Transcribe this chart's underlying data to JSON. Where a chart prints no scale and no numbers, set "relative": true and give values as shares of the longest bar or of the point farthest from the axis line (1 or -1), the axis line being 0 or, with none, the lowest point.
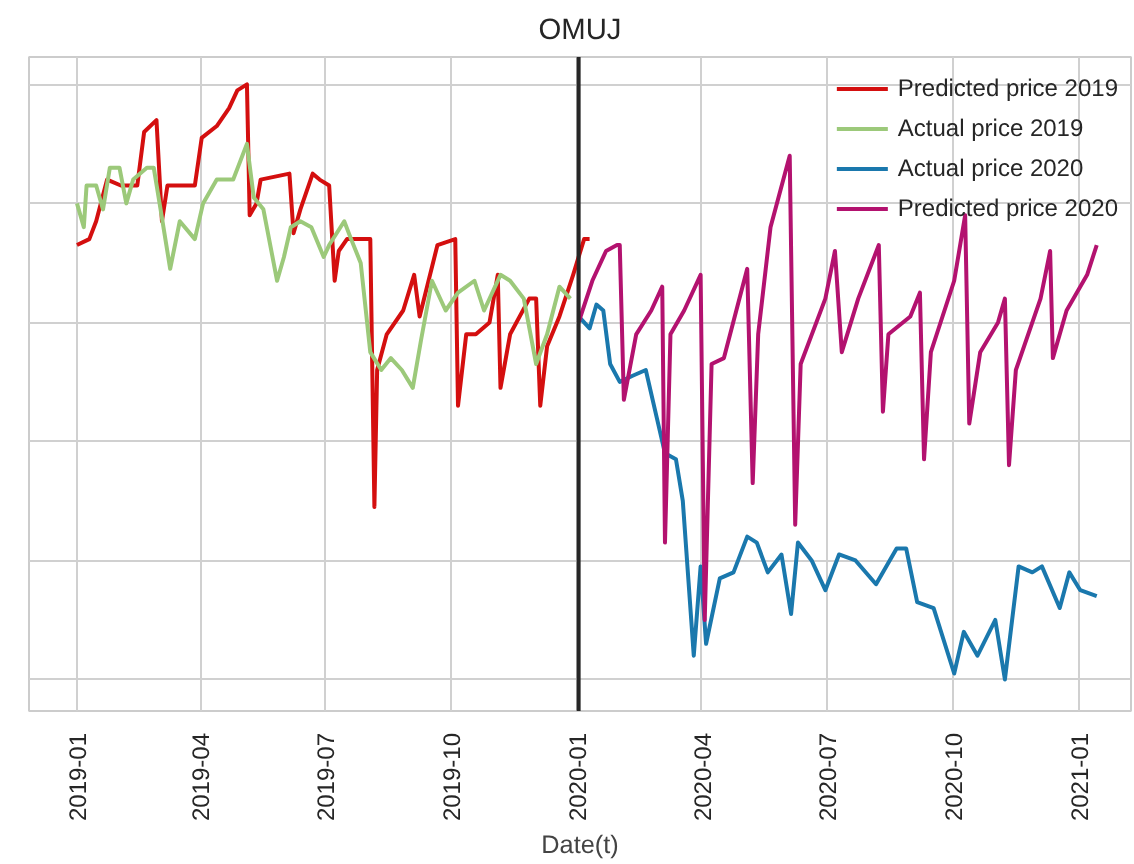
{
  "chart_data": {
    "type": "line",
    "title": "OMUJ",
    "xlabel": "Date(t)",
    "relative": true,
    "tick_labels": "x",
    "grid": true,
    "legend": "top right",
    "line_style": "solid",
    "marker": "none",
    "xlim": [
      "2018-11-27",
      "2021-02-08"
    ],
    "xticks": [
      {
        "value": "2019-01-01",
        "label": "2019-01"
      },
      {
        "value": "2019-04-01",
        "label": "2019-04"
      },
      {
        "value": "2019-07-01",
        "label": "2019-07"
      },
      {
        "value": "2019-10-01",
        "label": "2019-10"
      },
      {
        "value": "2020-01-01",
        "label": "2020-01"
      },
      {
        "value": "2020-04-01",
        "label": "2020-04"
      },
      {
        "value": "2020-07-01",
        "label": "2020-07"
      },
      {
        "value": "2020-10-01",
        "label": "2020-10"
      },
      {
        "value": "2021-01-01",
        "label": "2021-01"
      }
    ],
    "ref_lines": [
      {
        "axis": "x",
        "value": "2020-01-02",
        "label": null,
        "color": "#262626"
      }
    ],
    "series": [
      {
        "name": "Predicted price 2019",
        "color": "#d40f0f",
        "x": [
          "2019-01-01",
          "2019-01-10",
          "2019-01-15",
          "2019-01-23",
          "2019-02-02",
          "2019-02-14",
          "2019-02-19",
          "2019-02-28",
          "2019-03-04",
          "2019-03-08",
          "2019-03-28",
          "2019-04-02",
          "2019-04-13",
          "2019-04-22",
          "2019-04-28",
          "2019-05-05",
          "2019-05-07",
          "2019-05-12",
          "2019-05-15",
          "2019-06-05",
          "2019-06-08",
          "2019-06-13",
          "2019-06-22",
          "2019-06-27",
          "2019-07-04",
          "2019-07-08",
          "2019-07-11",
          "2019-07-17",
          "2019-08-03",
          "2019-08-06",
          "2019-08-08",
          "2019-08-15",
          "2019-08-27",
          "2019-09-04",
          "2019-09-08",
          "2019-09-21",
          "2019-10-04",
          "2019-10-06",
          "2019-10-12",
          "2019-10-19",
          "2019-10-29",
          "2019-11-04",
          "2019-11-06",
          "2019-11-13",
          "2019-11-27",
          "2019-12-02",
          "2019-12-05",
          "2019-12-10",
          "2019-12-19",
          "2019-12-29",
          "2020-01-06",
          "2020-01-10"
        ],
        "values": [
          0.73,
          0.74,
          0.77,
          0.84,
          0.83,
          0.83,
          0.92,
          0.94,
          0.77,
          0.83,
          0.83,
          0.91,
          0.93,
          0.96,
          0.99,
          1.0,
          0.78,
          0.8,
          0.84,
          0.85,
          0.75,
          0.79,
          0.85,
          0.84,
          0.83,
          0.67,
          0.72,
          0.74,
          0.74,
          0.29,
          0.52,
          0.58,
          0.62,
          0.68,
          0.61,
          0.73,
          0.74,
          0.46,
          0.58,
          0.58,
          0.6,
          0.68,
          0.49,
          0.58,
          0.64,
          0.64,
          0.46,
          0.56,
          0.61,
          0.68,
          0.74,
          0.74
        ]
      },
      {
        "name": "Actual price 2019",
        "color": "#9cc97a",
        "x": [
          "2019-01-01",
          "2019-01-06",
          "2019-01-08",
          "2019-01-15",
          "2019-01-20",
          "2019-01-25",
          "2019-02-01",
          "2019-02-06",
          "2019-02-11",
          "2019-02-21",
          "2019-02-26",
          "2019-03-03",
          "2019-03-10",
          "2019-03-17",
          "2019-03-28",
          "2019-04-03",
          "2019-04-13",
          "2019-04-25",
          "2019-05-05",
          "2019-05-10",
          "2019-05-17",
          "2019-05-27",
          "2019-06-01",
          "2019-06-06",
          "2019-06-13",
          "2019-06-21",
          "2019-06-30",
          "2019-07-04",
          "2019-07-15",
          "2019-07-20",
          "2019-07-27",
          "2019-08-03",
          "2019-08-11",
          "2019-08-18",
          "2019-08-26",
          "2019-09-03",
          "2019-09-09",
          "2019-09-17",
          "2019-09-27",
          "2019-10-06",
          "2019-10-18",
          "2019-10-25",
          "2019-11-06",
          "2019-11-13",
          "2019-11-23",
          "2019-12-02",
          "2019-12-10",
          "2019-12-19",
          "2019-12-27"
        ],
        "values": [
          0.8,
          0.76,
          0.83,
          0.83,
          0.79,
          0.86,
          0.86,
          0.8,
          0.84,
          0.86,
          0.86,
          0.79,
          0.69,
          0.77,
          0.74,
          0.8,
          0.84,
          0.84,
          0.9,
          0.81,
          0.79,
          0.67,
          0.71,
          0.76,
          0.77,
          0.76,
          0.71,
          0.73,
          0.77,
          0.74,
          0.7,
          0.55,
          0.52,
          0.54,
          0.52,
          0.49,
          0.57,
          0.67,
          0.62,
          0.65,
          0.67,
          0.62,
          0.68,
          0.67,
          0.64,
          0.53,
          0.58,
          0.66,
          0.64
        ]
      },
      {
        "name": "Actual price 2020",
        "color": "#1a78ad",
        "x": [
          "2020-01-02",
          "2020-01-10",
          "2020-01-15",
          "2020-01-20",
          "2020-01-25",
          "2020-02-01",
          "2020-02-10",
          "2020-02-20",
          "2020-02-28",
          "2020-03-05",
          "2020-03-13",
          "2020-03-18",
          "2020-03-26",
          "2020-03-31",
          "2020-04-04",
          "2020-04-14",
          "2020-04-24",
          "2020-05-04",
          "2020-05-11",
          "2020-05-19",
          "2020-05-29",
          "2020-06-05",
          "2020-06-10",
          "2020-06-20",
          "2020-06-30",
          "2020-07-10",
          "2020-07-22",
          "2020-08-06",
          "2020-08-21",
          "2020-08-28",
          "2020-09-05",
          "2020-09-17",
          "2020-10-02",
          "2020-10-09",
          "2020-10-19",
          "2020-11-01",
          "2020-11-08",
          "2020-11-18",
          "2020-11-28",
          "2020-12-05",
          "2020-12-18",
          "2020-12-25",
          "2021-01-02",
          "2021-01-14"
        ],
        "values": [
          0.61,
          0.59,
          0.63,
          0.62,
          0.53,
          0.5,
          0.51,
          0.52,
          0.44,
          0.38,
          0.37,
          0.3,
          0.04,
          0.19,
          0.06,
          0.17,
          0.18,
          0.24,
          0.23,
          0.18,
          0.21,
          0.11,
          0.23,
          0.2,
          0.15,
          0.21,
          0.2,
          0.16,
          0.22,
          0.22,
          0.13,
          0.12,
          0.01,
          0.08,
          0.04,
          0.1,
          0.0,
          0.19,
          0.18,
          0.19,
          0.12,
          0.18,
          0.15,
          0.14
        ]
      },
      {
        "name": "Predicted price 2020",
        "color": "#b3126f",
        "x": [
          "2020-01-02",
          "2020-01-12",
          "2020-01-22",
          "2020-01-30",
          "2020-02-01",
          "2020-02-04",
          "2020-02-13",
          "2020-02-24",
          "2020-03-03",
          "2020-03-05",
          "2020-03-09",
          "2020-03-19",
          "2020-03-31",
          "2020-04-03",
          "2020-04-08",
          "2020-04-17",
          "2020-05-04",
          "2020-05-08",
          "2020-05-12",
          "2020-05-21",
          "2020-06-04",
          "2020-06-08",
          "2020-06-12",
          "2020-06-30",
          "2020-07-07",
          "2020-07-12",
          "2020-07-24",
          "2020-08-08",
          "2020-08-11",
          "2020-08-15",
          "2020-08-31",
          "2020-09-07",
          "2020-09-10",
          "2020-09-15",
          "2020-10-02",
          "2020-10-10",
          "2020-10-13",
          "2020-10-21",
          "2020-11-03",
          "2020-11-08",
          "2020-11-11",
          "2020-11-16",
          "2020-12-04",
          "2020-12-11",
          "2020-12-13",
          "2020-12-23",
          "2021-01-07",
          "2021-01-14"
        ],
        "values": [
          0.6,
          0.67,
          0.72,
          0.73,
          0.73,
          0.47,
          0.58,
          0.62,
          0.66,
          0.23,
          0.58,
          0.62,
          0.68,
          0.1,
          0.53,
          0.54,
          0.69,
          0.33,
          0.58,
          0.76,
          0.88,
          0.26,
          0.53,
          0.64,
          0.72,
          0.55,
          0.64,
          0.73,
          0.45,
          0.58,
          0.61,
          0.65,
          0.37,
          0.55,
          0.67,
          0.78,
          0.43,
          0.55,
          0.6,
          0.64,
          0.36,
          0.52,
          0.64,
          0.72,
          0.54,
          0.62,
          0.68,
          0.73
        ]
      }
    ]
  }
}
